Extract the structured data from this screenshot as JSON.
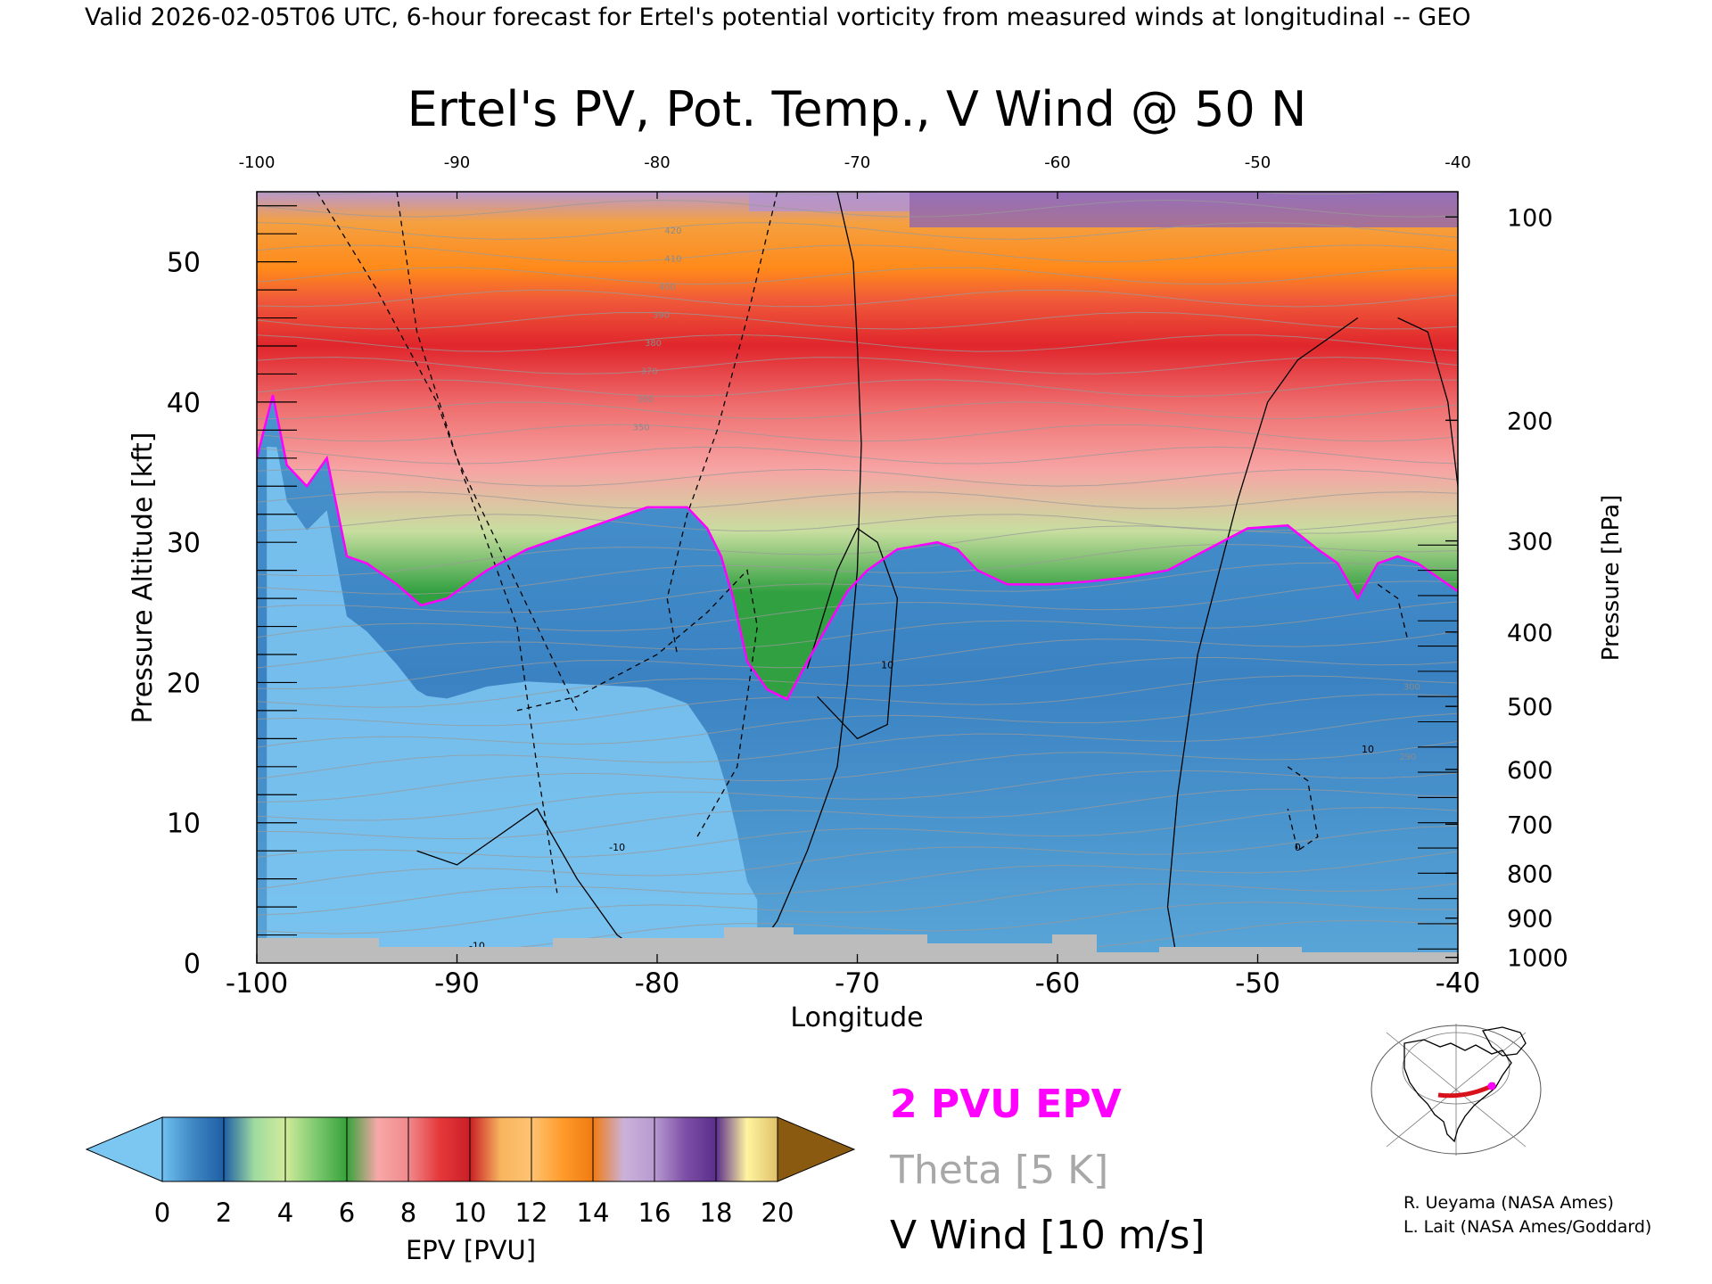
{
  "header": "Valid 2026-02-05T06 UTC, 6-hour forecast for Ertel's potential vorticity from measured winds at longitudinal -- GEO",
  "chart_data": {
    "type": "heatmap",
    "title": "Ertel's PV, Pot. Temp., V Wind @ 50 N",
    "xlabel": "Longitude",
    "ylabel": "Pressure Altitude [kft]",
    "y2label": "Pressure [hPa]",
    "xlim": [
      -100,
      -40
    ],
    "ylim": [
      0,
      55
    ],
    "x_ticks": [
      "-100",
      "-90",
      "-80",
      "-70",
      "-60",
      "-50",
      "-40"
    ],
    "top_ticks": [
      "-100",
      "-90",
      "-80",
      "-70",
      "-60",
      "-50",
      "-40"
    ],
    "y_ticks": [
      "0",
      "10",
      "20",
      "30",
      "40",
      "50"
    ],
    "pressure_ticks": [
      {
        "label": "100",
        "kft": 53.2
      },
      {
        "label": "200",
        "kft": 38.7
      },
      {
        "label": "300",
        "kft": 30.1
      },
      {
        "label": "400",
        "kft": 23.6
      },
      {
        "label": "500",
        "kft": 18.3
      },
      {
        "label": "600",
        "kft": 13.8
      },
      {
        "label": "700",
        "kft": 9.9
      },
      {
        "label": "800",
        "kft": 6.4
      },
      {
        "label": "900",
        "kft": 3.2
      },
      {
        "label": "1000",
        "kft": 0.4
      }
    ],
    "tropopause_2pvu": {
      "lon": [
        -100,
        -99.2,
        -98.5,
        -97.5,
        -96.5,
        -95.5,
        -94.5,
        -93,
        -91.8,
        -90.5,
        -88.5,
        -86.5,
        -84.5,
        -82.5,
        -80.5,
        -78.5,
        -77.5,
        -76.8,
        -76.2,
        -75.5,
        -74.5,
        -73.5,
        -72.5,
        -71.5,
        -70.5,
        -69.5,
        -68,
        -66,
        -65,
        -64,
        -62.5,
        -60.5,
        -58.5,
        -56.5,
        -54.5,
        -52.5,
        -50.5,
        -48.5,
        -47,
        -46,
        -45,
        -44,
        -43,
        -42,
        -41,
        -40
      ],
      "kft": [
        36,
        40.5,
        35.5,
        34,
        36,
        29,
        28.5,
        27,
        25.5,
        26,
        28,
        29.5,
        30.5,
        31.5,
        32.5,
        32.5,
        31,
        29,
        26,
        21.5,
        19.5,
        18.8,
        21.5,
        24,
        26.5,
        28,
        29.5,
        30,
        29.5,
        28,
        27,
        27,
        27.2,
        27.5,
        28,
        29.5,
        31,
        31.2,
        29.5,
        28.5,
        26,
        28.5,
        29,
        28.5,
        27.5,
        26.5
      ]
    },
    "cold_pool_lon": [
      -99.5,
      -75
    ],
    "v_wind_contours": [
      "-10",
      "0",
      "10"
    ],
    "theta_labels": [
      "420",
      "410",
      "400",
      "390",
      "380",
      "370",
      "360",
      "350",
      "300",
      "290"
    ],
    "colorbar": {
      "label": "EPV [PVU]",
      "ticks": [
        "0",
        "2",
        "4",
        "6",
        "8",
        "10",
        "12",
        "14",
        "16",
        "18",
        "20"
      ],
      "segments": [
        [
          "#6fc0f0",
          "#3f87c3",
          "#1f5fa5"
        ],
        [
          "#1f5fa5",
          "#9fdba0",
          "#d0eb9a"
        ],
        [
          "#d0eb9a",
          "#7dc96f",
          "#36a23a"
        ],
        [
          "#36a23a",
          "#f7a8a8",
          "#f08a8c"
        ],
        [
          "#f08a8c",
          "#e5393c",
          "#c81f26"
        ],
        [
          "#c81f26",
          "#f7b55e",
          "#ffc372"
        ],
        [
          "#ffc372",
          "#ff9b2b",
          "#f07b12"
        ],
        [
          "#f07b12",
          "#cbb2da",
          "#b89ad0"
        ],
        [
          "#b89ad0",
          "#7d4fa6",
          "#5a2e8c"
        ],
        [
          "#5a2e8c",
          "#fff4a0",
          "#e0c26a"
        ]
      ],
      "under_color": "#7cc7f2",
      "over_color": "#8a5a10"
    }
  },
  "legend": {
    "pvu": "2 PVU EPV",
    "pvu_color": "#ff00ff",
    "theta": "Theta [5 K]",
    "theta_color": "#a8a8a8",
    "wind": "V Wind [10 m/s]"
  },
  "credits": [
    "R. Ueyama (NASA Ames)",
    "L. Lait (NASA Ames/Goddard)"
  ]
}
